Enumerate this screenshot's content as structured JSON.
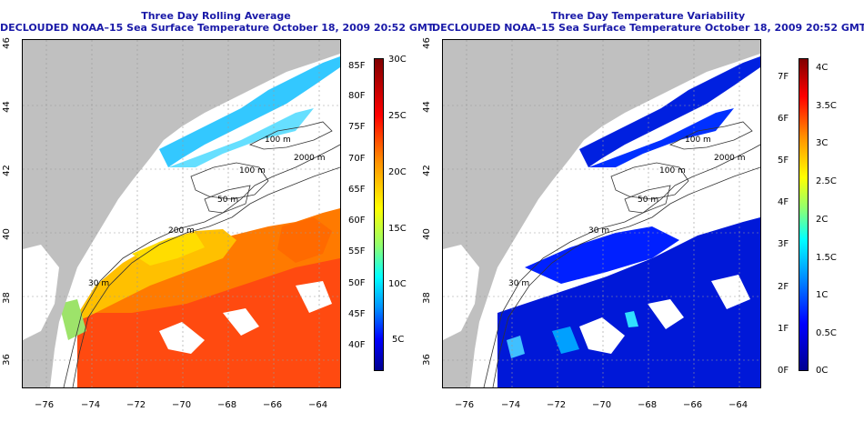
{
  "colors": {
    "title": "#1a1aa8",
    "land": "#c0c0c0",
    "scale": [
      "#000090",
      "#0000ff",
      "#0090ff",
      "#00ffff",
      "#90ff70",
      "#ffff00",
      "#ff9000",
      "#ff0000",
      "#800000"
    ]
  },
  "panels": [
    {
      "id": "left",
      "title": "Three Day Rolling Average",
      "subtitle": "DECLOUDED NOAA–15 Sea Surface Temperature October 18, 2009 20:52 GMT",
      "y_ticks": [
        "46",
        "44",
        "42",
        "40",
        "38",
        "36"
      ],
      "x_ticks": [
        "−76",
        "−74",
        "−72",
        "−70",
        "−68",
        "−66",
        "−64"
      ],
      "contour_labels": [
        "100 m",
        "100 m",
        "2000 m",
        "50 m",
        "200 m",
        "30 m"
      ],
      "colorbar": {
        "left_labels": [
          "85F",
          "80F",
          "75F",
          "70F",
          "65F",
          "60F",
          "55F",
          "50F",
          "45F",
          "40F"
        ],
        "right_labels": [
          "30C",
          "25C",
          "20C",
          "15C",
          "10C",
          "5C"
        ]
      }
    },
    {
      "id": "right",
      "title": "Three Day Temperature Variability",
      "subtitle": "DECLOUDED NOAA–15 Sea Surface Temperature October 18, 2009 20:52 GMT",
      "y_ticks": [
        "46",
        "44",
        "42",
        "40",
        "38",
        "36"
      ],
      "x_ticks": [
        "−76",
        "−74",
        "−72",
        "−70",
        "−68",
        "−66",
        "−64"
      ],
      "contour_labels": [
        "100 m",
        "100 m",
        "2000 m",
        "50 m",
        "30 m",
        "30 m"
      ],
      "colorbar": {
        "left_labels": [
          "7F",
          "6F",
          "5F",
          "4F",
          "3F",
          "2F",
          "1F",
          "0F"
        ],
        "right_labels": [
          "4C",
          "3.5C",
          "3C",
          "2.5C",
          "2C",
          "1.5C",
          "1C",
          "0.5C",
          "0C"
        ]
      }
    }
  ]
}
